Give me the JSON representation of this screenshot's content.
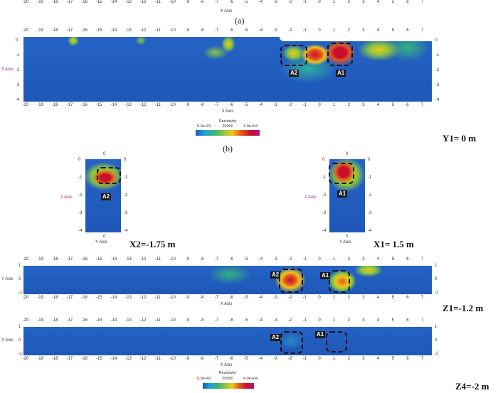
{
  "x_ticks": [
    "-20",
    "-19",
    "-18",
    "-17",
    "-16",
    "-15",
    "-14",
    "-13",
    "-12",
    "-11",
    "-10",
    "-9",
    "-8",
    "-7",
    "-6",
    "-5",
    "-4",
    "-3",
    "-2",
    "-1",
    "0",
    "1",
    "2",
    "3",
    "4",
    "5",
    "6",
    "7"
  ],
  "x_axis_title": "X Axis",
  "y_axis_title": "Y Axis",
  "z_axis_title": "Z Axis",
  "z_ticks": [
    "0",
    "-1",
    "-2",
    "-3",
    "-4"
  ],
  "y_ticks": [
    "1",
    "0",
    "-1"
  ],
  "captions": {
    "a": "(a)",
    "b": "(b)"
  },
  "colorbar": {
    "title": "Resistivity",
    "min": "5.0e+02",
    "mid": "20000",
    "max": "4.0e+04"
  },
  "anomalies": {
    "a1": "A1",
    "a2": "A2"
  },
  "labels": {
    "y1": "Y1= 0 m",
    "x2": "X2=-1.75 m",
    "x1": "X1= 1.5 m",
    "z1": "Z1=-1.2 m",
    "z4": "Z4=-2 m"
  },
  "slice_y_tick": "0",
  "slice_z_left": "Z Axis",
  "colors": {
    "background": "#1f57b8",
    "high": "#c8102e",
    "mid": "#f0c419",
    "low": "#1f57b8"
  }
}
